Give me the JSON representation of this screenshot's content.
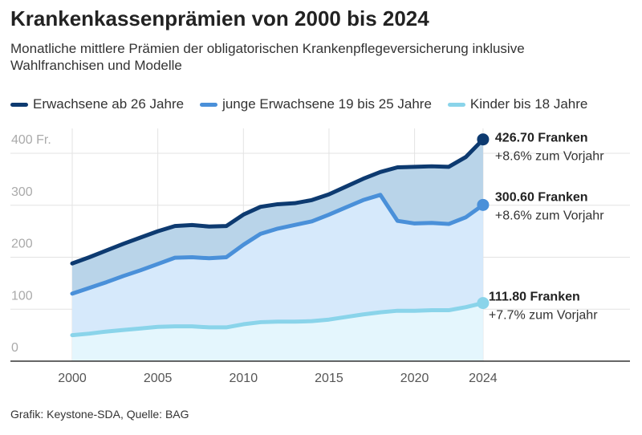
{
  "title": "Krankenkassenprämien von 2000 bis 2024",
  "subtitle": "Monatliche mittlere Prämien der obligatorischen Krankenpflegeversicherung inklusive Wahlfranchisen und Modelle",
  "source": "Grafik: Keystone-SDA, Quelle: BAG",
  "chart_data": {
    "type": "area",
    "x": [
      2000,
      2001,
      2002,
      2003,
      2004,
      2005,
      2006,
      2007,
      2008,
      2009,
      2010,
      2011,
      2012,
      2013,
      2014,
      2015,
      2016,
      2017,
      2018,
      2019,
      2020,
      2021,
      2022,
      2023,
      2024
    ],
    "ylim": [
      0,
      440
    ],
    "yticks": [
      0,
      100,
      200,
      300,
      400
    ],
    "ytick_labels": [
      "0",
      "100",
      "200",
      "300",
      "400 Fr."
    ],
    "xticks": [
      2000,
      2005,
      2010,
      2015,
      2020,
      2024
    ],
    "xtick_labels": [
      "2000",
      "2005",
      "2010",
      "2015",
      "2020",
      "2024"
    ],
    "grid": true,
    "legend_position": "top",
    "series": [
      {
        "name": "Erwachsene ab 26 Jahre",
        "color": "#0d3a70",
        "fill": "#b9d4e9",
        "values": [
          188,
          200,
          213,
          226,
          238,
          250,
          260,
          262,
          259,
          260,
          282,
          297,
          302,
          304,
          310,
          321,
          336,
          351,
          364,
          373,
          374,
          375,
          374,
          393,
          426.7
        ],
        "end_label": "426.70 Franken",
        "end_change": "+8.6% zum Vorjahr"
      },
      {
        "name": "junge Erwachsene 19 bis 25 Jahre",
        "color": "#4a90d9",
        "fill": "#d6e9fb",
        "values": [
          130,
          141,
          152,
          164,
          175,
          187,
          199,
          200,
          198,
          200,
          224,
          245,
          255,
          262,
          269,
          282,
          296,
          310,
          320,
          270,
          265,
          266,
          264,
          277,
          300.6
        ],
        "end_label": "300.60 Franken",
        "end_change": "+8.6% zum Vorjahr"
      },
      {
        "name": "Kinder bis 18 Jahre",
        "color": "#8ad4ea",
        "fill": "#e4f6fd",
        "values": [
          50,
          53,
          57,
          60,
          63,
          66,
          67,
          67,
          65,
          65,
          71,
          75,
          76,
          76,
          77,
          80,
          85,
          90,
          94,
          97,
          97,
          98,
          98,
          104,
          111.8
        ],
        "end_label": "111.80 Franken",
        "end_change": "+7.7% zum Vorjahr"
      }
    ]
  }
}
